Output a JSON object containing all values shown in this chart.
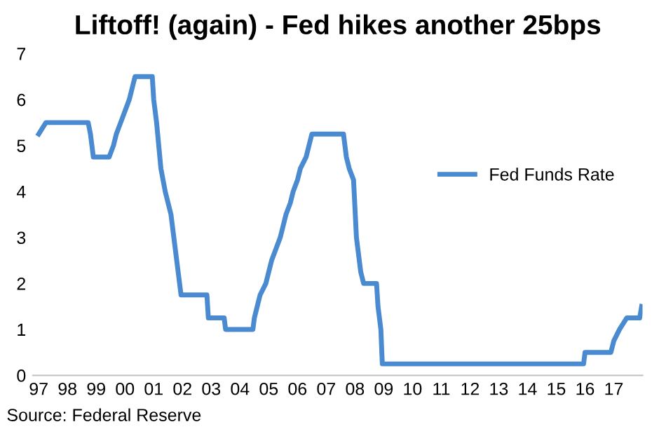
{
  "chart_data": {
    "type": "line",
    "title": "Liftoff! (again) - Fed hikes another 25bps",
    "x": [
      1997.0,
      1997.25,
      1998.72,
      1998.8,
      1998.85,
      1998.9,
      1999.45,
      1999.6,
      1999.7,
      1999.85,
      2000.0,
      2000.15,
      2000.35,
      2000.95,
      2001.0,
      2001.1,
      2001.25,
      2001.4,
      2001.5,
      2001.6,
      2001.7,
      2001.8,
      2001.9,
      2001.95,
      2002.85,
      2002.9,
      2003.45,
      2003.5,
      2004.45,
      2004.5,
      2004.6,
      2004.7,
      2004.9,
      2005.0,
      2005.1,
      2005.25,
      2005.4,
      2005.6,
      2005.75,
      2005.85,
      2006.0,
      2006.1,
      2006.3,
      2006.4,
      2006.5,
      2007.6,
      2007.7,
      2007.8,
      2007.95,
      2008.05,
      2008.2,
      2008.3,
      2008.75,
      2008.8,
      2008.9,
      2008.95,
      2015.95,
      2016.0,
      2016.9,
      2017.0,
      2017.2,
      2017.45,
      2017.9,
      2017.97
    ],
    "series": [
      {
        "name": "Fed Funds Rate",
        "color": "#4a8ad0",
        "values": [
          5.25,
          5.5,
          5.5,
          5.25,
          5.0,
          4.75,
          4.75,
          5.0,
          5.25,
          5.5,
          5.75,
          6.0,
          6.5,
          6.5,
          6.0,
          5.5,
          4.5,
          4.0,
          3.75,
          3.5,
          3.0,
          2.5,
          2.0,
          1.75,
          1.75,
          1.25,
          1.25,
          1.0,
          1.0,
          1.25,
          1.5,
          1.75,
          2.0,
          2.25,
          2.5,
          2.75,
          3.0,
          3.5,
          3.75,
          4.0,
          4.25,
          4.5,
          4.75,
          5.0,
          5.25,
          5.25,
          4.75,
          4.5,
          4.25,
          3.0,
          2.25,
          2.0,
          2.0,
          1.5,
          1.0,
          0.25,
          0.25,
          0.5,
          0.5,
          0.75,
          1.0,
          1.25,
          1.25,
          1.5
        ]
      }
    ],
    "xlim": [
      1996.8,
      2018.0
    ],
    "xticks": [
      {
        "value": 1997,
        "label": "97"
      },
      {
        "value": 1998,
        "label": "98"
      },
      {
        "value": 1999,
        "label": "99"
      },
      {
        "value": 2000,
        "label": "00"
      },
      {
        "value": 2001,
        "label": "01"
      },
      {
        "value": 2002,
        "label": "02"
      },
      {
        "value": 2003,
        "label": "03"
      },
      {
        "value": 2004,
        "label": "04"
      },
      {
        "value": 2005,
        "label": "05"
      },
      {
        "value": 2006,
        "label": "06"
      },
      {
        "value": 2007,
        "label": "07"
      },
      {
        "value": 2008,
        "label": "08"
      },
      {
        "value": 2009,
        "label": "09"
      },
      {
        "value": 2010,
        "label": "10"
      },
      {
        "value": 2011,
        "label": "11"
      },
      {
        "value": 2012,
        "label": "12"
      },
      {
        "value": 2013,
        "label": "13"
      },
      {
        "value": 2014,
        "label": "14"
      },
      {
        "value": 2015,
        "label": "15"
      },
      {
        "value": 2016,
        "label": "16"
      },
      {
        "value": 2017,
        "label": "17"
      }
    ],
    "ylim": [
      0,
      7
    ],
    "yticks": [
      0,
      1,
      2,
      3,
      4,
      5,
      6,
      7
    ],
    "grid": false,
    "legend": "right",
    "marker": "none",
    "line_style": "solid",
    "annotations": [
      "Source: Federal Reserve"
    ]
  }
}
